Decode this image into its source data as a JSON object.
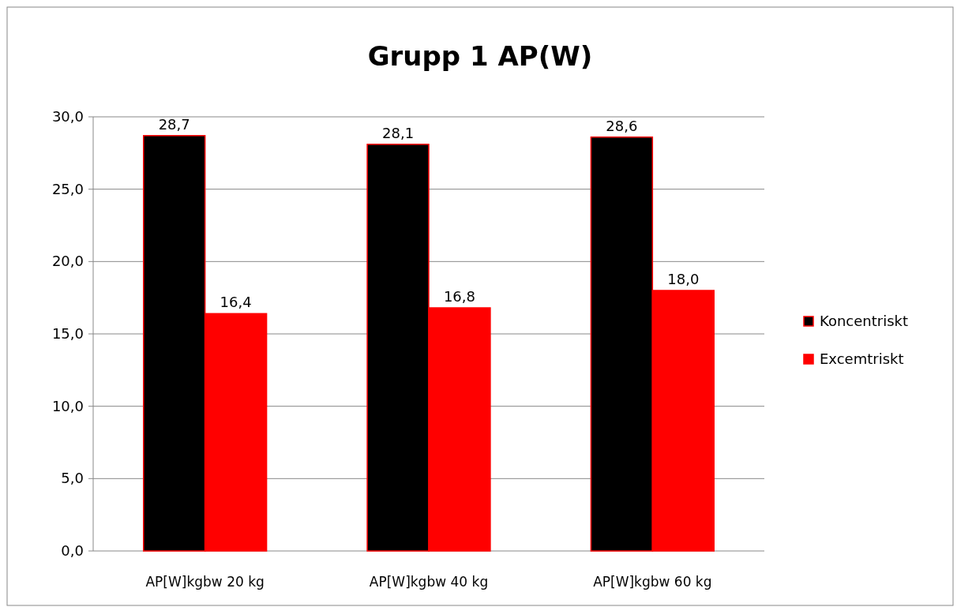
{
  "chart_data": {
    "type": "bar",
    "title": "Grupp 1 AP(W)",
    "categories": [
      "AP[W]kgbw 20 kg",
      "AP[W]kgbw 40 kg",
      "AP[W]kgbw 60 kg"
    ],
    "series": [
      {
        "name": "Koncentriskt",
        "color": "#000000",
        "values": [
          28.7,
          28.1,
          28.6
        ],
        "value_labels": [
          "28,7",
          "28,1",
          "28,6"
        ]
      },
      {
        "name": "Excemtriskt",
        "color": "#ff0000",
        "values": [
          16.4,
          16.8,
          18.0
        ],
        "value_labels": [
          "16,4",
          "16,8",
          "18,0"
        ]
      }
    ],
    "ylim": [
      0,
      30
    ],
    "yticks": [
      {
        "value": 0,
        "label": "0,0"
      },
      {
        "value": 5,
        "label": "5,0"
      },
      {
        "value": 10,
        "label": "10,0"
      },
      {
        "value": 15,
        "label": "15,0"
      },
      {
        "value": 20,
        "label": "20,0"
      },
      {
        "value": 25,
        "label": "25,0"
      },
      {
        "value": 30,
        "label": "30,0"
      }
    ],
    "grid": true,
    "legend": "right"
  }
}
